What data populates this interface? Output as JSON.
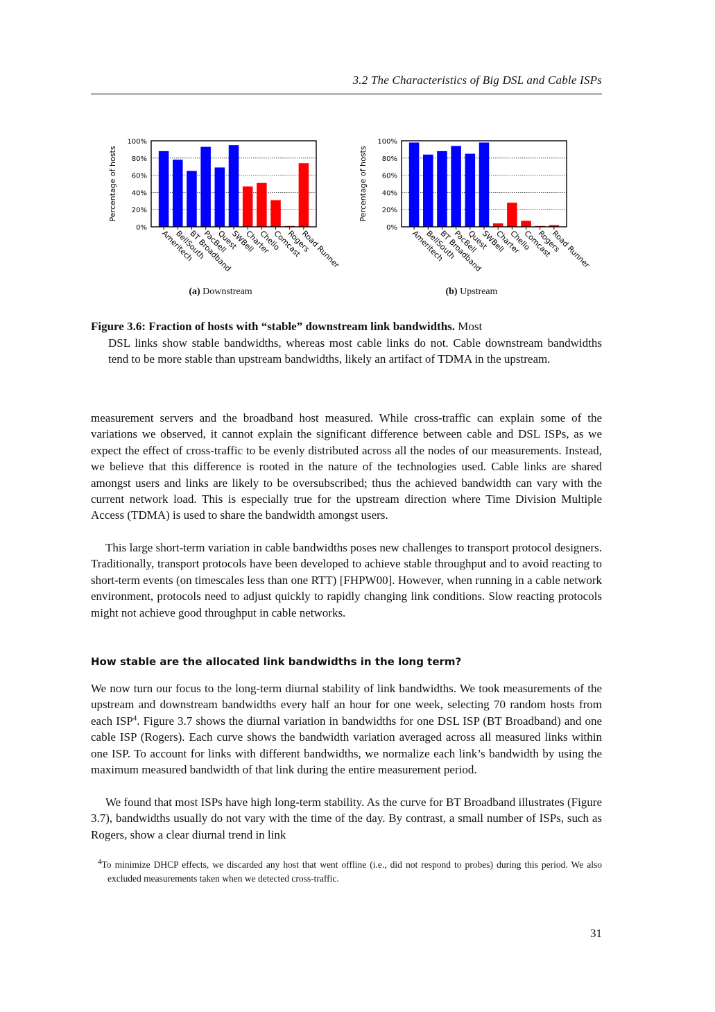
{
  "header": {
    "running_title": "3.2  The Characteristics of Big DSL and Cable ISPs"
  },
  "figure": {
    "subfigures": [
      {
        "label": "(a)",
        "name": "Downstream"
      },
      {
        "label": "(b)",
        "name": "Upstream"
      }
    ],
    "caption_bold": "Figure 3.6: Fraction of hosts with “stable” downstream link bandwidths.",
    "caption_first": "Most",
    "caption_rest": "DSL links show stable bandwidths, whereas most cable links do not. Cable downstream bandwidths tend to be more stable than upstream bandwidths, likely an artifact of TDMA in the upstream."
  },
  "chart_data": [
    {
      "type": "bar",
      "subtitle": "Downstream",
      "ylabel": "Percentage of hosts",
      "ylim": [
        0,
        100
      ],
      "yticks": [
        "0%",
        "20%",
        "40%",
        "60%",
        "80%",
        "100%"
      ],
      "grid": true,
      "categories": [
        "Ameritech",
        "BellSouth",
        "BT Broadband",
        "PacBell",
        "Quest",
        "SWBell",
        "Charter",
        "Chello",
        "Comcast",
        "Rogers",
        "Road Runner"
      ],
      "values": [
        88,
        78,
        65,
        93,
        69,
        95,
        47,
        51,
        31,
        1,
        74
      ],
      "colors": [
        "#0000ff",
        "#0000ff",
        "#0000ff",
        "#0000ff",
        "#0000ff",
        "#0000ff",
        "#ff0000",
        "#ff0000",
        "#ff0000",
        "#ff0000",
        "#ff0000"
      ]
    },
    {
      "type": "bar",
      "subtitle": "Upstream",
      "ylabel": "Percentage of hosts",
      "ylim": [
        0,
        100
      ],
      "yticks": [
        "0%",
        "20%",
        "40%",
        "60%",
        "80%",
        "100%"
      ],
      "grid": true,
      "categories": [
        "Ameritech",
        "BellSouth",
        "BT Broadband",
        "PacBell",
        "Quest",
        "SWBell",
        "Charter",
        "Chello",
        "Comcast",
        "Rogers",
        "Road Runner"
      ],
      "values": [
        98,
        84,
        88,
        94,
        85,
        98,
        4,
        28,
        7,
        1,
        2
      ],
      "colors": [
        "#0000ff",
        "#0000ff",
        "#0000ff",
        "#0000ff",
        "#0000ff",
        "#0000ff",
        "#ff0000",
        "#ff0000",
        "#ff0000",
        "#ff0000",
        "#ff0000"
      ]
    }
  ],
  "body": {
    "para1": "measurement servers and the broadband host measured. While cross-traffic can explain some of the variations we observed, it cannot explain the significant difference between cable and DSL ISPs, as we expect the effect of cross-traffic to be evenly distributed across all the nodes of our measurements. Instead, we believe that this difference is rooted in the nature of the technologies used. Cable links are shared amongst users and links are likely to be oversubscribed; thus the achieved bandwidth can vary with the current network load. This is especially true for the upstream direction where Time Division Multiple Access (TDMA) is used to share the bandwidth amongst users.",
    "para2": "This large short-term variation in cable bandwidths poses new challenges to transport protocol designers. Traditionally, transport protocols have been developed to achieve stable throughput and to avoid reacting to short-term events (on timescales less than one RTT) [FHPW00]. However, when running in a cable network environment, protocols need to adjust quickly to rapidly changing link conditions. Slow reacting protocols might not achieve good throughput in cable networks.",
    "section_heading": "How stable are the allocated link bandwidths in the long term?",
    "para3_a": "We now turn our focus to the long-term diurnal stability of link bandwidths. We took measurements of the upstream and downstream bandwidths every half an hour for one week, selecting 70 random hosts from each ISP",
    "para3_sup": "4",
    "para3_b": ". Figure 3.7 shows the diurnal variation in bandwidths for one DSL ISP (BT Broadband) and one cable ISP (Rogers). Each curve shows the bandwidth variation averaged across all measured links within one ISP. To account for links with different bandwidths, we normalize each link’s bandwidth by using the maximum measured bandwidth of that link during the entire measurement period.",
    "para4": "We found that most ISPs have high long-term stability. As the curve for BT Broadband illustrates (Figure 3.7), bandwidths usually do not vary with the time of the day. By contrast, a small number of ISPs, such as Rogers, show a clear diurnal trend in link"
  },
  "footnote": {
    "marker": "4",
    "text": "To minimize DHCP effects, we discarded any host that went offline (i.e., did not respond to probes) during this period. We also excluded measurements taken when we detected cross-traffic."
  },
  "page_number": "31"
}
